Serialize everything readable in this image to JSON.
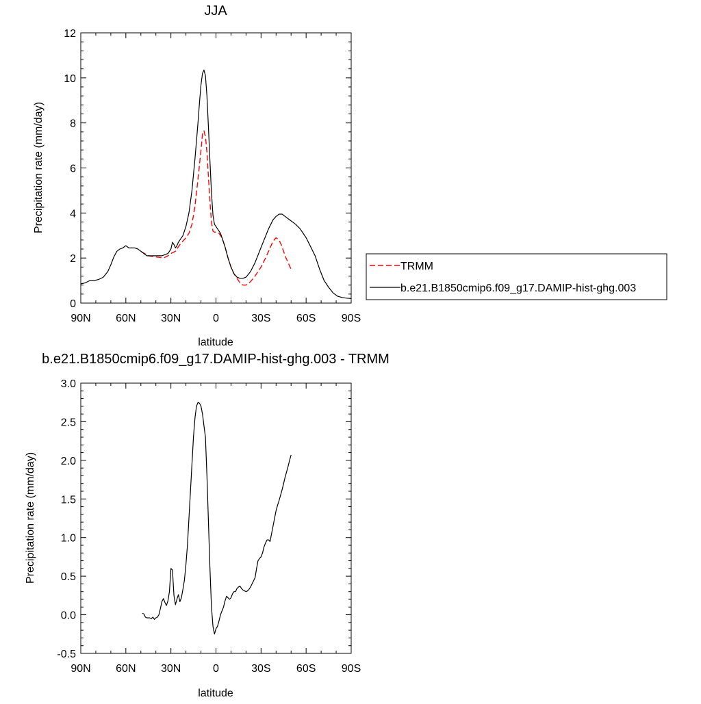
{
  "chart_data": [
    {
      "type": "line",
      "title": "JJA",
      "xlabel": "latitude",
      "ylabel": "Precipitation rate (mm/day)",
      "xlim": [
        90,
        -90
      ],
      "ylim": [
        0,
        12
      ],
      "xticks": [
        90,
        60,
        30,
        0,
        -30,
        -60,
        -90
      ],
      "xtick_labels": [
        "90N",
        "60N",
        "30N",
        "0",
        "30S",
        "60S",
        "90S"
      ],
      "yticks": [
        0,
        2,
        4,
        6,
        8,
        10,
        12
      ],
      "ytick_labels": [
        "0",
        "2",
        "4",
        "6",
        "8",
        "10",
        "12"
      ],
      "grid": false,
      "legend": "right-outside",
      "series": [
        {
          "name": "TRMM",
          "color": "#ff0000",
          "style": "dashed",
          "x": [
            50,
            45,
            40,
            35,
            32,
            30,
            27,
            24,
            20,
            18,
            16,
            14,
            12,
            10,
            9,
            8,
            7,
            6,
            5,
            4,
            3,
            2,
            1,
            0,
            -2,
            -4,
            -6,
            -8,
            -10,
            -12,
            -14,
            -16,
            -18,
            -20,
            -23,
            -26,
            -30,
            -33,
            -36,
            -38,
            -40,
            -42,
            -44,
            -46,
            -48,
            -50
          ],
          "y": [
            2.3,
            2.1,
            2.05,
            2.0,
            2.1,
            2.2,
            2.3,
            2.6,
            2.9,
            3.1,
            3.5,
            4.3,
            5.5,
            6.8,
            7.5,
            7.65,
            7.4,
            6.7,
            5.6,
            4.5,
            3.6,
            3.2,
            3.15,
            3.15,
            3.1,
            2.9,
            2.5,
            2.0,
            1.6,
            1.3,
            1.1,
            0.9,
            0.8,
            0.8,
            0.95,
            1.2,
            1.6,
            2.0,
            2.45,
            2.75,
            2.9,
            2.8,
            2.5,
            2.1,
            1.8,
            1.5
          ]
        },
        {
          "name": "b.e21.B1850cmip6.f09_g17.DAMIP-hist-ghg.003",
          "color": "#000000",
          "style": "solid",
          "x": [
            90,
            87,
            84,
            81,
            78,
            75,
            72,
            70,
            68,
            66,
            64,
            62,
            60,
            58,
            56,
            54,
            52,
            50,
            48,
            46,
            44,
            42,
            40,
            38,
            36,
            34,
            32,
            30,
            29,
            28,
            27,
            26,
            25,
            24,
            22,
            20,
            18,
            16,
            14,
            12,
            11,
            10,
            9,
            8,
            7,
            6,
            5,
            4,
            3,
            2,
            1,
            0,
            -1,
            -2,
            -3,
            -4,
            -6,
            -8,
            -10,
            -12,
            -14,
            -16,
            -18,
            -20,
            -23,
            -26,
            -29,
            -32,
            -35,
            -38,
            -40,
            -42,
            -44,
            -46,
            -48,
            -50,
            -53,
            -56,
            -60,
            -63,
            -66,
            -69,
            -72,
            -75,
            -78,
            -81,
            -84,
            -87,
            -90
          ],
          "y": [
            0.85,
            0.9,
            1.0,
            1.0,
            1.05,
            1.15,
            1.4,
            1.7,
            2.05,
            2.3,
            2.4,
            2.45,
            2.55,
            2.45,
            2.45,
            2.45,
            2.4,
            2.3,
            2.2,
            2.1,
            2.1,
            2.1,
            2.1,
            2.1,
            2.1,
            2.15,
            2.2,
            2.4,
            2.7,
            2.6,
            2.45,
            2.55,
            2.7,
            2.8,
            3.0,
            3.4,
            4.0,
            5.0,
            6.4,
            8.0,
            8.9,
            9.7,
            10.2,
            10.35,
            10.1,
            9.2,
            7.8,
            6.3,
            4.9,
            3.9,
            3.5,
            3.4,
            3.3,
            3.2,
            3.1,
            2.9,
            2.5,
            2.0,
            1.6,
            1.3,
            1.15,
            1.1,
            1.1,
            1.15,
            1.4,
            1.8,
            2.3,
            2.8,
            3.3,
            3.7,
            3.85,
            3.95,
            3.95,
            3.85,
            3.75,
            3.65,
            3.5,
            3.3,
            2.9,
            2.5,
            2.1,
            1.5,
            1.0,
            0.7,
            0.45,
            0.3,
            0.25,
            0.22,
            0.2
          ]
        }
      ]
    },
    {
      "type": "line",
      "title": "b.e21.B1850cmip6.f09_g17.DAMIP-hist-ghg.003 - TRMM",
      "xlabel": "latitude",
      "ylabel": "Precipitation rate (mm/day)",
      "xlim": [
        90,
        -90
      ],
      "ylim": [
        -0.5,
        3.0
      ],
      "xticks": [
        90,
        60,
        30,
        0,
        -30,
        -60,
        -90
      ],
      "xtick_labels": [
        "90N",
        "60N",
        "30N",
        "0",
        "30S",
        "60S",
        "90S"
      ],
      "yticks": [
        -0.5,
        0,
        0.5,
        1.0,
        1.5,
        2.0,
        2.5,
        3.0
      ],
      "ytick_labels": [
        "-0.5",
        "0.0",
        "0.5",
        "1.0",
        "1.5",
        "2.0",
        "2.5",
        "3.0"
      ],
      "grid": false,
      "series": [
        {
          "color": "#000000",
          "style": "solid",
          "x": [
            49,
            48,
            47,
            46,
            45,
            44,
            43,
            42,
            41,
            40,
            39,
            38,
            37,
            36,
            35,
            34,
            33,
            32,
            31,
            30,
            29,
            28,
            27,
            26,
            25,
            24,
            23,
            22,
            21,
            20,
            19,
            18,
            17,
            16,
            15,
            14,
            13,
            12,
            11,
            10,
            9,
            8,
            7,
            6,
            5,
            4,
            3,
            2,
            1,
            0,
            -1,
            -2,
            -3,
            -4,
            -5,
            -6,
            -7,
            -8,
            -9,
            -10,
            -11,
            -12,
            -13,
            -14,
            -15,
            -16,
            -17,
            -18,
            -19,
            -20,
            -21,
            -22,
            -23,
            -24,
            -25,
            -26,
            -27,
            -28,
            -29,
            -30,
            -31,
            -32,
            -33,
            -34,
            -35,
            -36,
            -37,
            -38,
            -39,
            -40,
            -41,
            -42,
            -43,
            -44,
            -45,
            -46,
            -47,
            -48,
            -49,
            -50
          ],
          "y": [
            0.02,
            0.01,
            -0.03,
            -0.04,
            -0.04,
            -0.04,
            -0.05,
            -0.03,
            -0.06,
            -0.04,
            -0.03,
            0.0,
            0.08,
            0.17,
            0.21,
            0.16,
            0.12,
            0.18,
            0.3,
            0.6,
            0.58,
            0.25,
            0.13,
            0.2,
            0.26,
            0.17,
            0.22,
            0.33,
            0.45,
            0.65,
            0.9,
            1.25,
            1.6,
            1.95,
            2.3,
            2.55,
            2.7,
            2.75,
            2.74,
            2.7,
            2.6,
            2.45,
            2.3,
            1.8,
            1.2,
            0.6,
            0.1,
            -0.15,
            -0.25,
            -0.18,
            -0.15,
            -0.08,
            0.0,
            0.05,
            0.1,
            0.18,
            0.24,
            0.22,
            0.2,
            0.22,
            0.27,
            0.3,
            0.3,
            0.34,
            0.36,
            0.37,
            0.34,
            0.32,
            0.31,
            0.3,
            0.31,
            0.33,
            0.36,
            0.4,
            0.44,
            0.48,
            0.6,
            0.7,
            0.73,
            0.75,
            0.8,
            0.88,
            0.93,
            0.97,
            0.97,
            0.95,
            1.05,
            1.15,
            1.25,
            1.35,
            1.42,
            1.48,
            1.55,
            1.62,
            1.7,
            1.78,
            1.85,
            1.92,
            2.0,
            2.07
          ]
        }
      ]
    }
  ]
}
